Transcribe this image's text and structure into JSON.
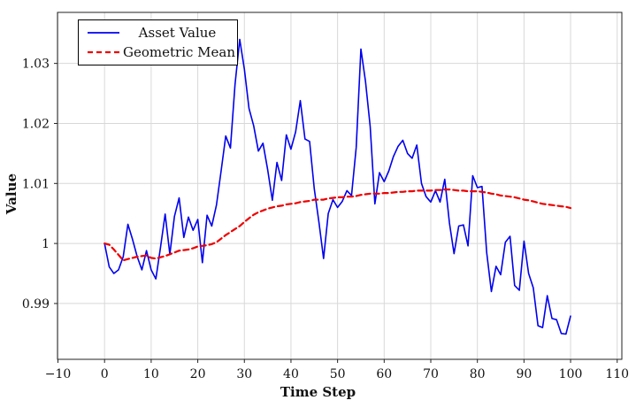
{
  "chart_data": {
    "type": "line",
    "title": "",
    "xlabel": "Time Step",
    "ylabel": "Value",
    "xlim": [
      -10.1,
      111.0
    ],
    "ylim": [
      0.9807,
      1.0385
    ],
    "grid": true,
    "legend_position": "top-left",
    "frame_color": "#222222",
    "grid_color": "#d8d8d8",
    "x_ticks": [
      -10,
      0,
      10,
      20,
      30,
      40,
      50,
      60,
      70,
      80,
      90,
      100,
      110
    ],
    "x_tick_labels": [
      "−10",
      "0",
      "10",
      "20",
      "30",
      "40",
      "50",
      "60",
      "70",
      "80",
      "90",
      "100",
      "110"
    ],
    "y_ticks": [
      0.99,
      1.0,
      1.01,
      1.02,
      1.03
    ],
    "y_tick_labels": [
      "0.99",
      "1",
      "1.01",
      "1.02",
      "1.03"
    ],
    "series": [
      {
        "name": "Asset Value",
        "color": "#0000ee",
        "style": "solid",
        "x_start": 0,
        "x_step": 1,
        "values": [
          1.0,
          0.9961,
          0.995,
          0.9956,
          0.9978,
          1.0032,
          1.0007,
          0.9978,
          0.9956,
          0.9988,
          0.9956,
          0.9941,
          0.9993,
          1.0049,
          0.9982,
          1.0045,
          1.0076,
          1.001,
          1.0044,
          1.0022,
          1.004,
          0.9968,
          1.0047,
          1.0029,
          1.0064,
          1.012,
          1.0179,
          1.0159,
          1.0265,
          1.034,
          1.029,
          1.0225,
          1.0196,
          1.0154,
          1.0167,
          1.0123,
          1.0072,
          1.0135,
          1.0105,
          1.0181,
          1.0157,
          1.0186,
          1.0238,
          1.0174,
          1.017,
          1.0091,
          1.0035,
          0.9975,
          1.005,
          1.0073,
          1.006,
          1.007,
          1.0088,
          1.008,
          1.016,
          1.0324,
          1.027,
          1.0195,
          1.0066,
          1.0118,
          1.0103,
          1.0121,
          1.0145,
          1.0162,
          1.0172,
          1.015,
          1.0142,
          1.0164,
          1.01,
          1.0078,
          1.0069,
          1.0088,
          1.0069,
          1.0107,
          1.0034,
          0.9983,
          1.0029,
          1.0031,
          0.9996,
          1.0113,
          1.0093,
          1.0095,
          0.9985,
          0.992,
          0.9962,
          0.9948,
          1.0002,
          1.0012,
          0.993,
          0.9922,
          1.0004,
          0.995,
          0.9926,
          0.9863,
          0.986,
          0.9913,
          0.9875,
          0.9873,
          0.985,
          0.9849,
          0.9879
        ]
      },
      {
        "name": "Geometric Mean",
        "color": "#ee0000",
        "style": "dashed",
        "x_start": 0,
        "x_step": 1,
        "values": [
          1.0,
          0.9998,
          0.999,
          0.9981,
          0.9972,
          0.9974,
          0.9976,
          0.9978,
          0.9979,
          0.998,
          0.9976,
          0.9975,
          0.9977,
          0.9979,
          0.9982,
          0.9985,
          0.9988,
          0.9989,
          0.999,
          0.9992,
          0.9995,
          0.9996,
          0.9997,
          0.9999,
          1.0002,
          1.0008,
          1.0014,
          1.0019,
          1.0024,
          1.0029,
          1.0036,
          1.0042,
          1.0048,
          1.0052,
          1.0055,
          1.0058,
          1.006,
          1.0062,
          1.0063,
          1.0065,
          1.0066,
          1.0067,
          1.0069,
          1.007,
          1.0071,
          1.0073,
          1.0073,
          1.0073,
          1.0075,
          1.0076,
          1.0077,
          1.0077,
          1.0078,
          1.0078,
          1.0079,
          1.0081,
          1.0082,
          1.0083,
          1.0083,
          1.0083,
          1.0084,
          1.0084,
          1.0085,
          1.0086,
          1.0086,
          1.0087,
          1.0087,
          1.0088,
          1.0088,
          1.0088,
          1.0088,
          1.0089,
          1.0089,
          1.009,
          1.009,
          1.0089,
          1.0088,
          1.0088,
          1.0087,
          1.0087,
          1.0087,
          1.0086,
          1.0085,
          1.0083,
          1.0082,
          1.008,
          1.0079,
          1.0078,
          1.0077,
          1.0075,
          1.0073,
          1.0072,
          1.007,
          1.0068,
          1.0066,
          1.0065,
          1.0064,
          1.0063,
          1.0062,
          1.0061,
          1.0059
        ]
      }
    ]
  },
  "legend": {
    "entries": [
      {
        "label": "Asset Value"
      },
      {
        "label": "Geometric Mean"
      }
    ]
  },
  "axes": {
    "x_title": "Time Step",
    "y_title": "Value"
  }
}
